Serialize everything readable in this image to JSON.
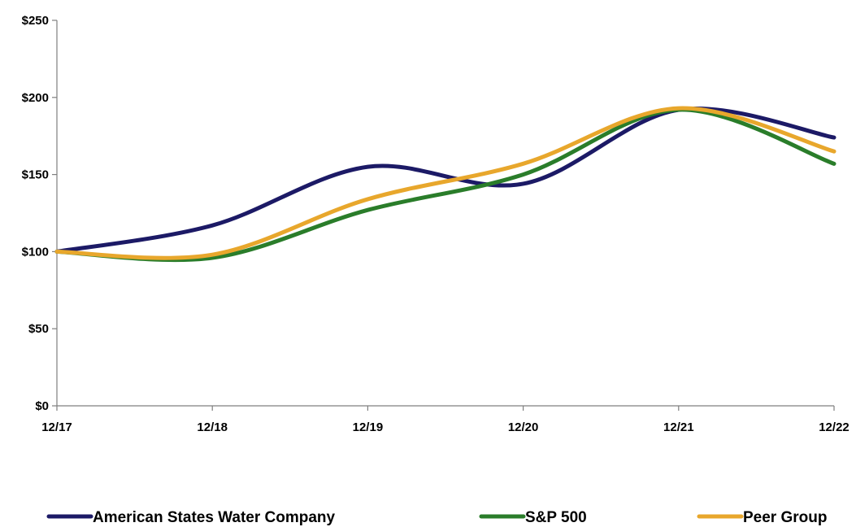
{
  "chart_data": {
    "type": "line",
    "title": "",
    "xlabel": "",
    "ylabel": "",
    "categories": [
      "12/17",
      "12/18",
      "12/19",
      "12/20",
      "12/21",
      "12/22"
    ],
    "ylim": [
      0,
      250
    ],
    "y_ticks": [
      0,
      50,
      100,
      150,
      200,
      250
    ],
    "y_tick_labels": [
      "$0",
      "$50",
      "$100",
      "$150",
      "$200",
      "$250"
    ],
    "grid": false,
    "legend_position": "bottom",
    "series": [
      {
        "name": "American States Water Company",
        "color": "#1c1a66",
        "values": [
          100,
          117,
          155,
          144,
          192,
          174
        ]
      },
      {
        "name": "S&P 500",
        "color": "#2a7d2a",
        "values": [
          100,
          96,
          127,
          150,
          192,
          157
        ]
      },
      {
        "name": "Peer Group",
        "color": "#e8a72c",
        "values": [
          100,
          98,
          134,
          157,
          193,
          165
        ]
      }
    ]
  }
}
